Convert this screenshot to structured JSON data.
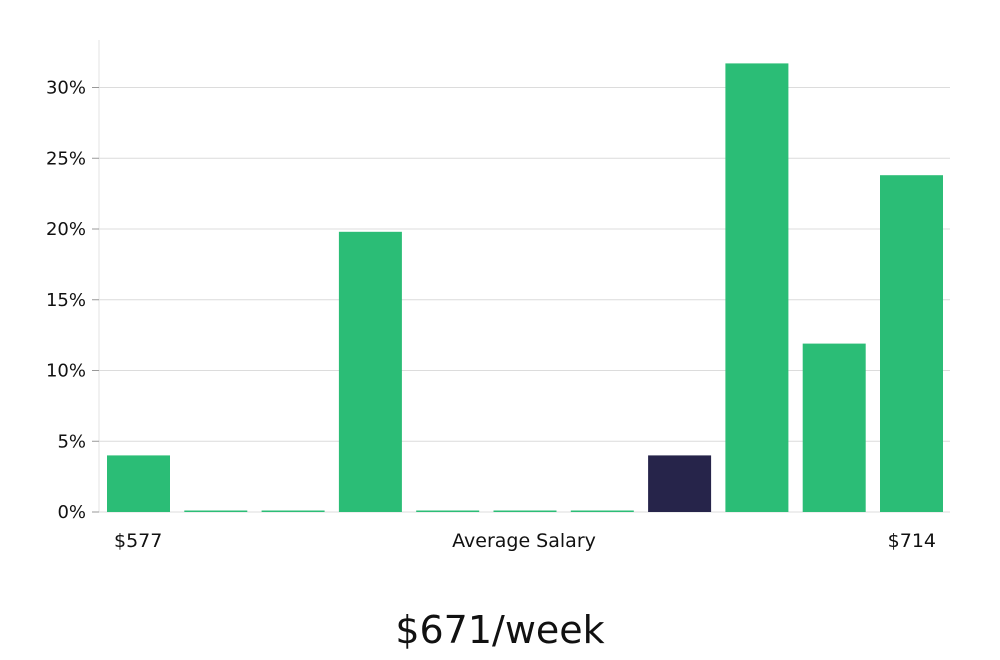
{
  "chart_data": {
    "type": "bar",
    "ylim": [
      0,
      33
    ],
    "yticks": [
      0,
      5,
      10,
      15,
      20,
      25,
      30
    ],
    "ytick_suffix": "%",
    "grid": true,
    "values": [
      4,
      0,
      0,
      19.8,
      0,
      0,
      0,
      4,
      31.7,
      11.9,
      23.8
    ],
    "highlight_index": 7,
    "bar_color": "#2bbd76",
    "highlight_color": "#26244a",
    "x_min_label": "$577",
    "x_max_label": "$714",
    "xlabel": "Average Salary"
  },
  "headline": "$671/week"
}
